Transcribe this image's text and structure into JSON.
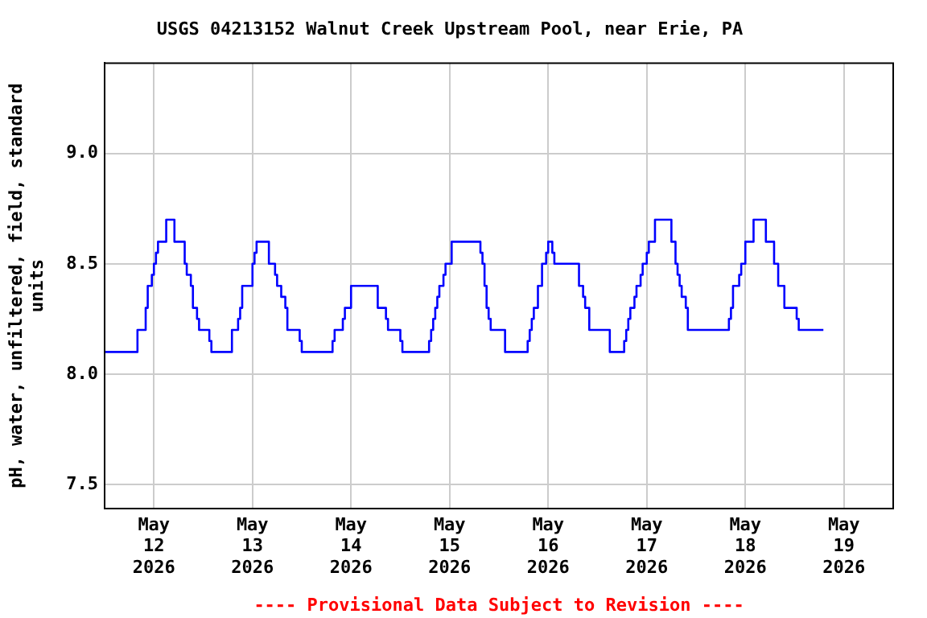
{
  "chart_data": {
    "type": "step",
    "title": "USGS 04213152 Walnut Creek Upstream Pool, near Erie, PA",
    "ylabel": "pH, water, unfiltered, field, standard units",
    "annotations": [
      "---- Provisional Data Subject to Revision ----"
    ],
    "x": [
      "2026-05-11T12:00",
      "2026-05-11T20:00",
      "2026-05-11T22:00",
      "2026-05-11T22:30",
      "2026-05-11T23:30",
      "2026-05-12T00:00",
      "2026-05-12T00:30",
      "2026-05-12T01:00",
      "2026-05-12T03:00",
      "2026-05-12T05:00",
      "2026-05-12T07:30",
      "2026-05-12T08:00",
      "2026-05-12T09:00",
      "2026-05-12T09:30",
      "2026-05-12T10:30",
      "2026-05-12T11:00",
      "2026-05-12T13:30",
      "2026-05-12T14:00",
      "2026-05-12T19:00",
      "2026-05-12T20:30",
      "2026-05-12T21:00",
      "2026-05-12T21:30",
      "2026-05-13T00:00",
      "2026-05-13T00:30",
      "2026-05-13T01:00",
      "2026-05-13T04:00",
      "2026-05-13T05:30",
      "2026-05-13T06:00",
      "2026-05-13T07:00",
      "2026-05-13T08:00",
      "2026-05-13T08:30",
      "2026-05-13T11:30",
      "2026-05-13T12:00",
      "2026-05-13T19:30",
      "2026-05-13T20:00",
      "2026-05-13T22:00",
      "2026-05-13T22:30",
      "2026-05-14T00:00",
      "2026-05-14T06:30",
      "2026-05-14T08:30",
      "2026-05-14T09:00",
      "2026-05-14T12:00",
      "2026-05-14T12:30",
      "2026-05-14T19:00",
      "2026-05-14T19:30",
      "2026-05-14T20:00",
      "2026-05-14T20:30",
      "2026-05-14T21:00",
      "2026-05-14T21:30",
      "2026-05-14T22:30",
      "2026-05-14T23:00",
      "2026-05-15T00:30",
      "2026-05-15T07:30",
      "2026-05-15T08:00",
      "2026-05-15T08:30",
      "2026-05-15T09:00",
      "2026-05-15T09:30",
      "2026-05-15T10:00",
      "2026-05-15T13:30",
      "2026-05-15T19:00",
      "2026-05-15T19:30",
      "2026-05-15T20:00",
      "2026-05-15T20:30",
      "2026-05-15T21:30",
      "2026-05-15T22:30",
      "2026-05-15T23:30",
      "2026-05-16T00:00",
      "2026-05-16T01:00",
      "2026-05-16T01:30",
      "2026-05-16T07:30",
      "2026-05-16T08:30",
      "2026-05-16T09:00",
      "2026-05-16T10:00",
      "2026-05-16T15:00",
      "2026-05-16T18:30",
      "2026-05-16T19:00",
      "2026-05-16T19:30",
      "2026-05-16T20:00",
      "2026-05-16T21:00",
      "2026-05-16T21:30",
      "2026-05-16T22:30",
      "2026-05-16T23:00",
      "2026-05-17T00:00",
      "2026-05-17T00:30",
      "2026-05-17T02:00",
      "2026-05-17T06:00",
      "2026-05-17T07:00",
      "2026-05-17T07:30",
      "2026-05-17T08:00",
      "2026-05-17T08:30",
      "2026-05-17T09:30",
      "2026-05-17T10:00",
      "2026-05-17T20:00",
      "2026-05-17T20:30",
      "2026-05-17T21:00",
      "2026-05-17T22:30",
      "2026-05-17T23:00",
      "2026-05-18T00:00",
      "2026-05-18T02:00",
      "2026-05-18T05:00",
      "2026-05-18T07:00",
      "2026-05-18T08:00",
      "2026-05-18T09:30",
      "2026-05-18T12:30",
      "2026-05-18T13:00",
      "2026-05-18T19:00"
    ],
    "series": [
      {
        "color": "#0000ff",
        "values": [
          8.1,
          8.2,
          8.3,
          8.4,
          8.45,
          8.5,
          8.55,
          8.6,
          8.7,
          8.6,
          8.5,
          8.45,
          8.4,
          8.3,
          8.25,
          8.2,
          8.15,
          8.1,
          8.2,
          8.25,
          8.3,
          8.4,
          8.5,
          8.55,
          8.6,
          8.5,
          8.45,
          8.4,
          8.35,
          8.3,
          8.2,
          8.15,
          8.1,
          8.15,
          8.2,
          8.25,
          8.3,
          8.4,
          8.3,
          8.25,
          8.2,
          8.15,
          8.1,
          8.15,
          8.2,
          8.25,
          8.3,
          8.35,
          8.4,
          8.45,
          8.5,
          8.6,
          8.55,
          8.5,
          8.4,
          8.3,
          8.25,
          8.2,
          8.1,
          8.15,
          8.2,
          8.25,
          8.3,
          8.4,
          8.5,
          8.55,
          8.6,
          8.55,
          8.5,
          8.4,
          8.35,
          8.3,
          8.2,
          8.1,
          8.15,
          8.2,
          8.25,
          8.3,
          8.35,
          8.4,
          8.45,
          8.5,
          8.55,
          8.6,
          8.7,
          8.6,
          8.5,
          8.45,
          8.4,
          8.35,
          8.3,
          8.2,
          8.25,
          8.3,
          8.4,
          8.45,
          8.5,
          8.6,
          8.7,
          8.6,
          8.5,
          8.4,
          8.3,
          8.25,
          8.2,
          8.2
        ]
      }
    ],
    "xlim": [
      "2026-05-11T12:00",
      "2026-05-19T12:00"
    ],
    "xticks": [
      {
        "value": "2026-05-12",
        "label": "May\n12\n2026"
      },
      {
        "value": "2026-05-13",
        "label": "May\n13\n2026"
      },
      {
        "value": "2026-05-14",
        "label": "May\n14\n2026"
      },
      {
        "value": "2026-05-15",
        "label": "May\n15\n2026"
      },
      {
        "value": "2026-05-16",
        "label": "May\n16\n2026"
      },
      {
        "value": "2026-05-17",
        "label": "May\n17\n2026"
      },
      {
        "value": "2026-05-18",
        "label": "May\n18\n2026"
      },
      {
        "value": "2026-05-19",
        "label": "May\n19\n2026"
      }
    ],
    "ylim": [
      7.39,
      9.41
    ],
    "yticks": [
      {
        "value": 7.5,
        "label": "7.5"
      },
      {
        "value": 8,
        "label": "8.0"
      },
      {
        "value": 8.5,
        "label": "8.5"
      },
      {
        "value": 9,
        "label": "9.0"
      }
    ],
    "grid": true,
    "legend": false
  }
}
